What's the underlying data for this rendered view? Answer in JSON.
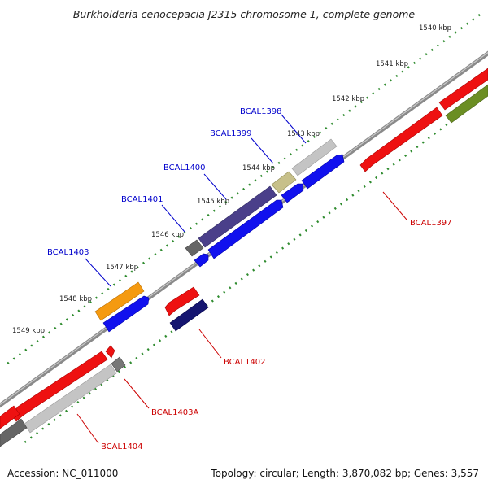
{
  "title": "Burkholderia cenocepacia J2315 chromosome 1, complete genome",
  "accession": "Accession: NC_011000",
  "summary": "Topology: circular; Length: 3,870,082 bp; Genes: 3,557",
  "kbp_labels": [
    "1540 kbp",
    "1541 kbp",
    "1542 kbp",
    "1543 kbp",
    "1544 kbp",
    "1545 kbp",
    "1546 kbp",
    "1547 kbp",
    "1548 kbp",
    "1549 kbp"
  ],
  "gene_labels": {
    "BCAL1398": "BCAL1398",
    "BCAL1399": "BCAL1399",
    "BCAL1400": "BCAL1400",
    "BCAL1401": "BCAL1401",
    "BCAL1403": "BCAL1403",
    "BCAL1397": "BCAL1397",
    "BCAL1402": "BCAL1402",
    "BCAL1403A": "BCAL1403A",
    "BCAL1404": "BCAL1404"
  },
  "colors": {
    "forward_label": "#0000cc",
    "reverse_label": "#cc0000",
    "backbone": "#777777",
    "ticks": "#2e8b2e",
    "red": "#ee1111",
    "blue": "#1111ee",
    "gray": "#bbbbbb",
    "dark_gray": "#666666",
    "purple": "#4a3f8a",
    "olive": "#6b8e23",
    "khaki": "#bdb76b",
    "orange": "#f59a10",
    "navy": "#151570"
  }
}
